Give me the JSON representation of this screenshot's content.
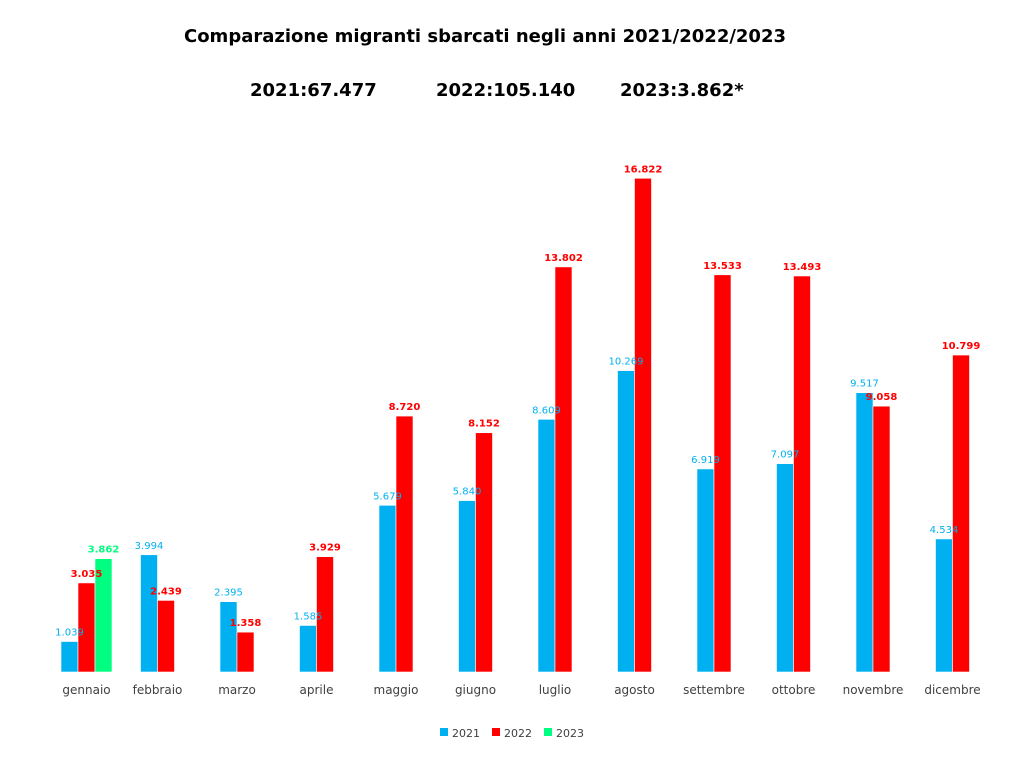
{
  "header": {
    "title": "Comparazione migranti sbarcati negli anni 2021/2022/2023",
    "totals": [
      {
        "year": "2021",
        "text": "2021:67.477"
      },
      {
        "year": "2022",
        "text": "2022:105.140"
      },
      {
        "year": "2023",
        "text": "2023:3.862*"
      }
    ]
  },
  "colors": {
    "2021": "#00b0f0",
    "2022": "#ff0000",
    "2023": "#00ff80"
  },
  "chart_data": {
    "type": "bar",
    "title": "Comparazione migranti sbarcati negli anni 2021/2022/2023",
    "xlabel": "",
    "ylabel": "",
    "ylim": [
      0,
      17000
    ],
    "grid": false,
    "legend_position": "bottom",
    "categories": [
      "gennaio",
      "febbraio",
      "marzo",
      "aprile",
      "maggio",
      "giugno",
      "luglio",
      "agosto",
      "settembre",
      "ottobre",
      "novembre",
      "dicembre"
    ],
    "series": [
      {
        "name": "2021",
        "values": [
          1039,
          3994,
          2395,
          1585,
          5679,
          5840,
          8609,
          10269,
          6919,
          7097,
          9517,
          4534
        ],
        "labels": [
          "1.039",
          "3.994",
          "2.395",
          "1.585",
          "5.679",
          "5.840",
          "8.609",
          "10.269",
          "6.919",
          "7.097",
          "9.517",
          "4.534"
        ]
      },
      {
        "name": "2022",
        "values": [
          3035,
          2439,
          1358,
          3929,
          8720,
          8152,
          13802,
          16822,
          13533,
          13493,
          9058,
          10799
        ],
        "labels": [
          "3.035",
          "2.439",
          "1.358",
          "3.929",
          "8.720",
          "8.152",
          "13.802",
          "16.822",
          "13.533",
          "13.493",
          "9.058",
          "10.799"
        ]
      },
      {
        "name": "2023",
        "values": [
          3862,
          null,
          null,
          null,
          null,
          null,
          null,
          null,
          null,
          null,
          null,
          null
        ],
        "labels": [
          "3.862",
          "",
          "",
          "",
          "",
          "",
          "",
          "",
          "",
          "",
          "",
          ""
        ]
      }
    ]
  }
}
